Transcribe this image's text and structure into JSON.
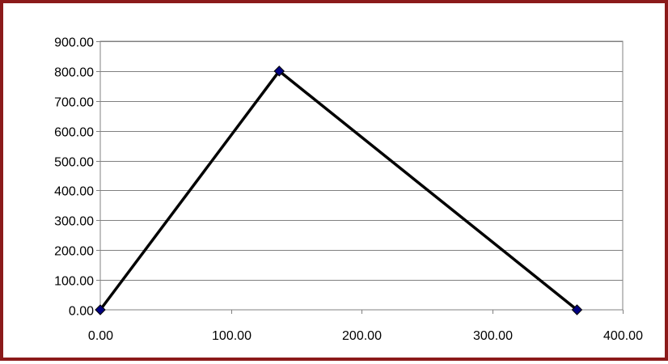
{
  "chart_data": {
    "type": "scatter",
    "mode": "lines+markers",
    "title": "",
    "xlabel": "",
    "ylabel": "",
    "xlim": [
      0,
      400
    ],
    "ylim": [
      0,
      900
    ],
    "x_ticks": [
      "0.00",
      "100.00",
      "200.00",
      "300.00",
      "400.00"
    ],
    "y_ticks": [
      "0.00",
      "100.00",
      "200.00",
      "300.00",
      "400.00",
      "500.00",
      "600.00",
      "700.00",
      "800.00",
      "900.00"
    ],
    "x_tick_values": [
      0,
      100,
      200,
      300,
      400
    ],
    "y_tick_values": [
      0,
      100,
      200,
      300,
      400,
      500,
      600,
      700,
      800,
      900
    ],
    "grid": "horizontal",
    "legend": "none",
    "series": [
      {
        "x": [
          0,
          137,
          365
        ],
        "y": [
          0,
          800,
          0
        ],
        "line_color": "#000000",
        "marker": "diamond",
        "marker_color": "#000080"
      }
    ],
    "frame_color": "#8b1a1a",
    "grid_color": "#808080"
  }
}
